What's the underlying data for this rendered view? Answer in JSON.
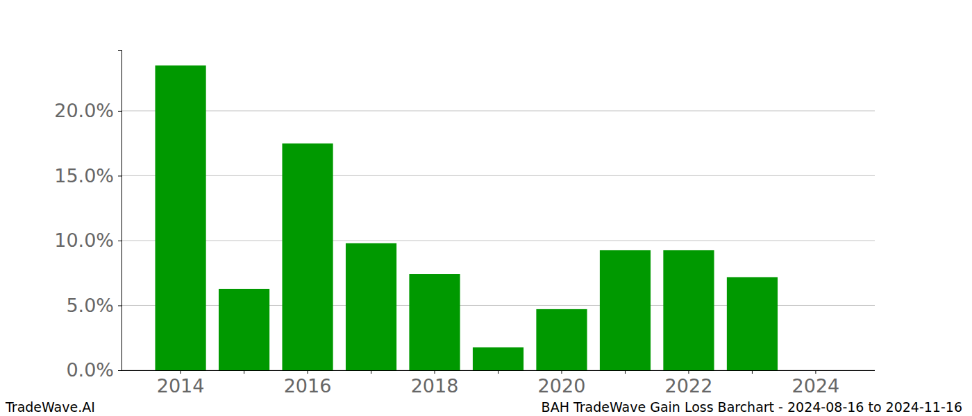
{
  "chart_data": {
    "type": "bar",
    "title": "BAH TradeWave Gain Loss Barchart - 2024-08-16 to 2024-11-16",
    "annotations": [
      "TradeWave.AI"
    ],
    "categories": [
      "2014",
      null,
      "2016",
      null,
      "2018",
      null,
      "2020",
      null,
      "2022",
      null,
      "2024"
    ],
    "values": [
      23.5,
      6.26,
      17.49,
      9.79,
      7.43,
      1.76,
      4.71,
      9.25,
      9.25,
      7.17,
      0
    ],
    "color": "#009900",
    "ylim": [
      0,
      24.7
    ],
    "yticks": [
      {
        "value": 0,
        "label": "0.0%"
      },
      {
        "value": 5,
        "label": "5.0%"
      },
      {
        "value": 10,
        "label": "10.0%"
      },
      {
        "value": 15,
        "label": "15.0%"
      },
      {
        "value": 20,
        "label": "20.0%"
      }
    ],
    "grid": true
  }
}
